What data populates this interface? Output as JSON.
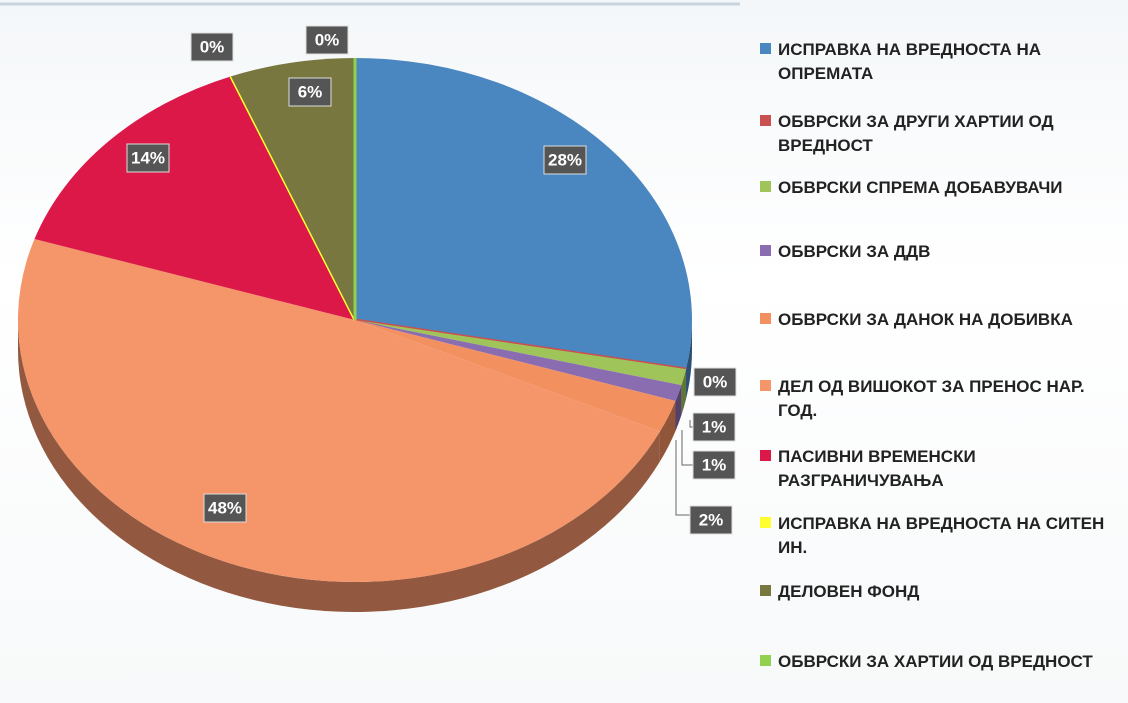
{
  "chart_data": {
    "type": "pie",
    "categories": [
      "ИСПРАВКА НА ВРЕДНОСТА НА ОПРЕМАТА",
      "ОБВРСКИ ЗА ДРУГИ ХАРТИИ ОД ВРЕДНОСТ",
      "ОБВРСКИ СПРЕМА ДОБАВУВАЧИ",
      "ОБВРСКИ ЗА ДДВ",
      "ОБВРСКИ ЗА ДАНОК НА ДОБИВКА",
      "ДЕЛ ОД ВИШОКОТ ЗА ПРЕНОС НАР. ГОД.",
      "ПАСИВНИ ВРЕМЕНСКИ РАЗГРАНИЧУВАЊА",
      "ИСПРАВКА НА ВРЕДНОСТА НА СИТЕН ИН.",
      "ДЕЛОВЕН ФОНД",
      "ОБВРСКИ ЗА ХАРТИИ ОД ВРЕДНОСТ"
    ],
    "values": [
      28,
      0,
      1,
      1,
      2,
      48,
      14,
      0,
      6,
      0
    ],
    "value_labels": [
      "28%",
      "0%",
      "1%",
      "1%",
      "2%",
      "48%",
      "14%",
      "0%",
      "6%",
      "0%"
    ],
    "colors": [
      "#4a86c0",
      "#c9504f",
      "#9fc45a",
      "#8a6cb0",
      "#f29060",
      "#f5956a",
      "#dc1848",
      "#ffff30",
      "#77773f",
      "#92d050"
    ]
  }
}
